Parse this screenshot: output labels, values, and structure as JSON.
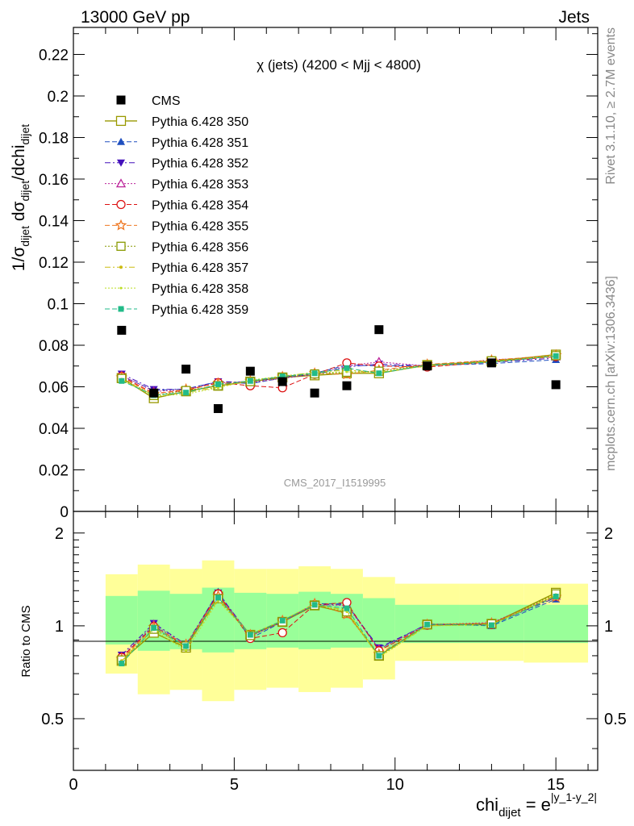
{
  "header": {
    "left": "13000 GeV pp",
    "right": "Jets"
  },
  "side_labels": {
    "rivet": "Rivet 3.1.10, ≥ 2.7M events",
    "mcplots": "mcplots.cern.ch [arXiv:1306.3436]"
  },
  "chart_data": [
    {
      "type": "scatter",
      "title": "χ (jets) (4200 < Mjj < 4800)",
      "ylabel": "1/σ_dijet dσ_dijet/dchi_dijet",
      "watermark": "CMS_2017_I1519995",
      "xlim": [
        0,
        16.3
      ],
      "ylim": [
        0,
        0.233
      ],
      "yticks": [
        "0",
        "0.02",
        "0.04",
        "0.06",
        "0.08",
        "0.1",
        "0.12",
        "0.14",
        "0.16",
        "0.18",
        "0.2",
        "0.22"
      ],
      "legend_position": "top-left",
      "x": [
        1.5,
        2.5,
        3.5,
        4.5,
        5.5,
        6.5,
        7.5,
        8.5,
        9.5,
        11,
        13,
        15
      ],
      "data": {
        "name": "CMS",
        "values": [
          0.0872,
          0.057,
          0.0685,
          0.0495,
          0.0675,
          0.0625,
          0.057,
          0.0605,
          0.0875,
          0.07,
          0.0715,
          0.061
        ]
      },
      "series": [
        {
          "name": "Pythia 6.428 350",
          "color": "#999900",
          "values": [
            0.0642,
            0.0545,
            0.0578,
            0.0605,
            0.0625,
            0.0645,
            0.0655,
            0.0665,
            0.0665,
            0.0705,
            0.0722,
            0.0755
          ]
        },
        {
          "name": "Pythia 6.428 351",
          "color": "#1f4fbf",
          "values": [
            0.0652,
            0.0582,
            0.059,
            0.0625,
            0.0615,
            0.0642,
            0.0665,
            0.0705,
            0.07,
            0.0702,
            0.0712,
            0.073
          ]
        },
        {
          "name": "Pythia 6.428 352",
          "color": "#4411bb",
          "values": [
            0.0662,
            0.0588,
            0.0588,
            0.0625,
            0.0622,
            0.0648,
            0.0658,
            0.0695,
            0.071,
            0.07,
            0.0718,
            0.0738
          ]
        },
        {
          "name": "Pythia 6.428 353",
          "color": "#bb2299",
          "values": [
            0.0655,
            0.0578,
            0.0585,
            0.062,
            0.062,
            0.064,
            0.066,
            0.07,
            0.072,
            0.07,
            0.073,
            0.0745
          ]
        },
        {
          "name": "Pythia 6.428 354",
          "color": "#dd1111",
          "values": [
            0.065,
            0.0568,
            0.0582,
            0.062,
            0.0605,
            0.0595,
            0.066,
            0.0715,
            0.07,
            0.0695,
            0.072,
            0.0745
          ]
        },
        {
          "name": "Pythia 6.428 355",
          "color": "#ee7722",
          "values": [
            0.0645,
            0.0565,
            0.0588,
            0.0615,
            0.0628,
            0.0648,
            0.0665,
            0.066,
            0.068,
            0.0708,
            0.0728,
            0.0752
          ]
        },
        {
          "name": "Pythia 6.428 356",
          "color": "#889900",
          "values": [
            0.064,
            0.0558,
            0.0582,
            0.0605,
            0.0625,
            0.0645,
            0.0662,
            0.067,
            0.0675,
            0.0705,
            0.0725,
            0.075
          ]
        },
        {
          "name": "Pythia 6.428 357",
          "color": "#ccbb11",
          "values": [
            0.0635,
            0.056,
            0.0572,
            0.0598,
            0.063,
            0.065,
            0.067,
            0.068,
            0.067,
            0.07,
            0.0722,
            0.0748
          ]
        },
        {
          "name": "Pythia 6.428 358",
          "color": "#bbdd22",
          "values": [
            0.0632,
            0.0555,
            0.0565,
            0.0595,
            0.0632,
            0.0652,
            0.0668,
            0.0672,
            0.0668,
            0.0702,
            0.072,
            0.0748
          ]
        },
        {
          "name": "Pythia 6.428 359",
          "color": "#22bb88",
          "values": [
            0.0628,
            0.056,
            0.0572,
            0.0612,
            0.0628,
            0.065,
            0.0665,
            0.069,
            0.0665,
            0.0705,
            0.0718,
            0.0748
          ]
        }
      ]
    },
    {
      "type": "scatter",
      "ylabel": "Ratio to CMS",
      "xlabel": "chi_dijet = e^|y_1-y_2|",
      "xlim": [
        0,
        16.3
      ],
      "ylim": [
        0.34,
        2.35
      ],
      "xticks": [
        "0",
        "5",
        "10",
        "15"
      ],
      "yticks": [
        "0.5",
        "1",
        "2"
      ],
      "bands": [
        {
          "x0": 1,
          "x1": 2,
          "inner": [
            0.87,
            1.25
          ],
          "outer": [
            0.7,
            1.47
          ]
        },
        {
          "x0": 2,
          "x1": 3,
          "inner": [
            0.83,
            1.3
          ],
          "outer": [
            0.6,
            1.58
          ]
        },
        {
          "x0": 3,
          "x1": 4,
          "inner": [
            0.84,
            1.27
          ],
          "outer": [
            0.62,
            1.53
          ]
        },
        {
          "x0": 4,
          "x1": 5,
          "inner": [
            0.82,
            1.33
          ],
          "outer": [
            0.57,
            1.63
          ]
        },
        {
          "x0": 5,
          "x1": 6,
          "inner": [
            0.84,
            1.28
          ],
          "outer": [
            0.62,
            1.53
          ]
        },
        {
          "x0": 6,
          "x1": 7,
          "inner": [
            0.85,
            1.27
          ],
          "outer": [
            0.63,
            1.53
          ]
        },
        {
          "x0": 7,
          "x1": 8,
          "inner": [
            0.84,
            1.29
          ],
          "outer": [
            0.61,
            1.56
          ]
        },
        {
          "x0": 8,
          "x1": 9,
          "inner": [
            0.85,
            1.27
          ],
          "outer": [
            0.63,
            1.53
          ]
        },
        {
          "x0": 9,
          "x1": 10,
          "inner": [
            0.85,
            1.23
          ],
          "outer": [
            0.67,
            1.44
          ]
        },
        {
          "x0": 10,
          "x1": 12,
          "inner": [
            0.88,
            1.17
          ],
          "outer": [
            0.77,
            1.37
          ]
        },
        {
          "x0": 12,
          "x1": 14,
          "inner": [
            0.88,
            1.17
          ],
          "outer": [
            0.77,
            1.37
          ]
        },
        {
          "x0": 14,
          "x1": 16,
          "inner": [
            0.88,
            1.17
          ],
          "outer": [
            0.76,
            1.37
          ]
        }
      ],
      "series": [
        {
          "name": "Pythia 6.428 350",
          "values": [
            0.77,
            0.95,
            0.85,
            1.245,
            0.935,
            1.03,
            1.165,
            1.1,
            0.8,
            1.01,
            1.015,
            1.28
          ]
        },
        {
          "name": "Pythia 6.428 351",
          "values": [
            0.79,
            1.0,
            0.86,
            1.29,
            0.91,
            1.03,
            1.18,
            1.18,
            0.84,
            1.015,
            1.0,
            1.22
          ]
        },
        {
          "name": "Pythia 6.428 352",
          "values": [
            0.805,
            1.02,
            0.87,
            1.28,
            0.93,
            1.04,
            1.17,
            1.17,
            0.85,
            1.01,
            1.01,
            1.235
          ]
        },
        {
          "name": "Pythia 6.428 353",
          "values": [
            0.795,
            1.01,
            0.865,
            1.27,
            0.925,
            1.03,
            1.17,
            1.165,
            0.84,
            1.01,
            1.025,
            1.25
          ]
        },
        {
          "name": "Pythia 6.428 354",
          "values": [
            0.79,
            0.995,
            0.86,
            1.27,
            0.91,
            0.95,
            1.17,
            1.19,
            0.83,
            1.005,
            1.01,
            1.25
          ]
        },
        {
          "name": "Pythia 6.428 355",
          "values": [
            0.78,
            0.99,
            0.87,
            1.25,
            0.935,
            1.04,
            1.18,
            1.09,
            0.81,
            1.01,
            1.02,
            1.24
          ]
        },
        {
          "name": "Pythia 6.428 356",
          "values": [
            0.775,
            0.975,
            0.86,
            1.225,
            0.93,
            1.03,
            1.165,
            1.11,
            0.8,
            1.01,
            1.015,
            1.27
          ]
        },
        {
          "name": "Pythia 6.428 357",
          "values": [
            0.77,
            0.98,
            0.85,
            1.215,
            0.94,
            1.04,
            1.18,
            1.12,
            0.795,
            1.0,
            1.01,
            1.26
          ]
        },
        {
          "name": "Pythia 6.428 358",
          "values": [
            0.765,
            0.97,
            0.83,
            1.205,
            0.935,
            1.045,
            1.175,
            1.11,
            0.79,
            1.0,
            1.005,
            1.255
          ]
        },
        {
          "name": "Pythia 6.428 359",
          "values": [
            0.755,
            0.985,
            0.86,
            1.235,
            0.935,
            1.04,
            1.17,
            1.14,
            0.8,
            1.01,
            1.005,
            1.245
          ]
        }
      ]
    }
  ]
}
